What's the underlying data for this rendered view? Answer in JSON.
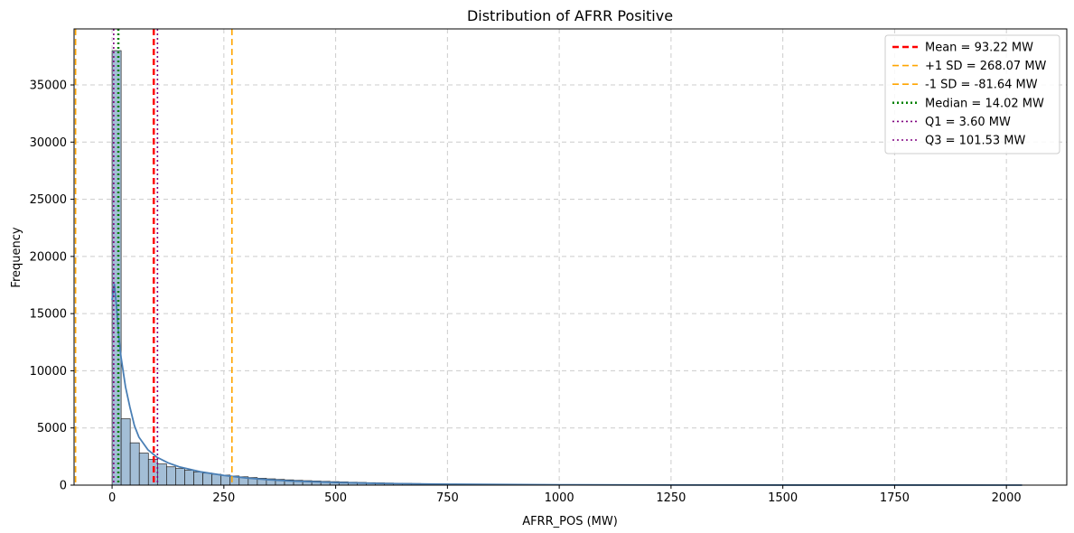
{
  "chart_data": {
    "type": "histogram",
    "title": "Distribution of AFRR Positive",
    "xlabel": "AFRR_POS (MW)",
    "ylabel": "Frequency",
    "xlim": [
      -85,
      2135
    ],
    "ylim": [
      0,
      39900
    ],
    "xticks": [
      0,
      250,
      500,
      750,
      1000,
      1250,
      1500,
      1750,
      2000
    ],
    "yticks": [
      0,
      5000,
      10000,
      15000,
      20000,
      25000,
      30000,
      35000
    ],
    "grid": true,
    "legend_position": "top-right",
    "bin_width": 20.3,
    "bin_start": 0,
    "bin_counts": [
      38000,
      5800,
      3700,
      2800,
      2250,
      1850,
      1600,
      1450,
      1300,
      1150,
      1050,
      950,
      880,
      800,
      730,
      660,
      600,
      550,
      500,
      460,
      420,
      390,
      360,
      330,
      305,
      280,
      255,
      235,
      215,
      195,
      180,
      165,
      150,
      138,
      126,
      115,
      105,
      96,
      88,
      80,
      73,
      66,
      60,
      55,
      50,
      46,
      42,
      38,
      35,
      32,
      29,
      26,
      24,
      22,
      20,
      18,
      16,
      15,
      14,
      13,
      12,
      11,
      10,
      9,
      8,
      8,
      7,
      7,
      6,
      6,
      5,
      5,
      5,
      4,
      4,
      4,
      3,
      3,
      3,
      3,
      2,
      2,
      2,
      2,
      2,
      2,
      2,
      1,
      1,
      1,
      1,
      1,
      1,
      1,
      1,
      1,
      1,
      1,
      1,
      1
    ],
    "kde": {
      "x": [
        0,
        5,
        10,
        15,
        20,
        30,
        40,
        50,
        60,
        80,
        100,
        125,
        150,
        200,
        250,
        300,
        350,
        400,
        500,
        600,
        750,
        1000,
        1250,
        1500,
        1750,
        2000,
        2035
      ],
      "y": [
        16200,
        17600,
        15600,
        13000,
        11200,
        8600,
        6800,
        5200,
        4200,
        3100,
        2450,
        1950,
        1600,
        1150,
        850,
        620,
        470,
        360,
        230,
        150,
        80,
        30,
        12,
        6,
        3,
        2,
        2
      ]
    },
    "reference_lines": [
      {
        "label": "Mean = 93.22 MW",
        "value": 93.22,
        "color": "#ff0000",
        "style": "dashed",
        "width": 2.5
      },
      {
        "label": "+1 SD = 268.07 MW",
        "value": 268.07,
        "color": "#ffa500",
        "style": "dashed",
        "width": 1.6
      },
      {
        "label": "-1 SD = -81.64 MW",
        "value": -81.64,
        "color": "#ffa500",
        "style": "dashed",
        "width": 1.6
      },
      {
        "label": "Median = 14.02 MW",
        "value": 14.02,
        "color": "#008000",
        "style": "dotted",
        "width": 2.5
      },
      {
        "label": "Q1 = 3.60 MW",
        "value": 3.6,
        "color": "#800080",
        "style": "dotted",
        "width": 1.6
      },
      {
        "label": "Q3 = 101.53 MW",
        "value": 101.53,
        "color": "#800080",
        "style": "dotted",
        "width": 1.6
      }
    ],
    "bar_fill": "#a3bed6",
    "kde_color": "#4a7fb5"
  }
}
